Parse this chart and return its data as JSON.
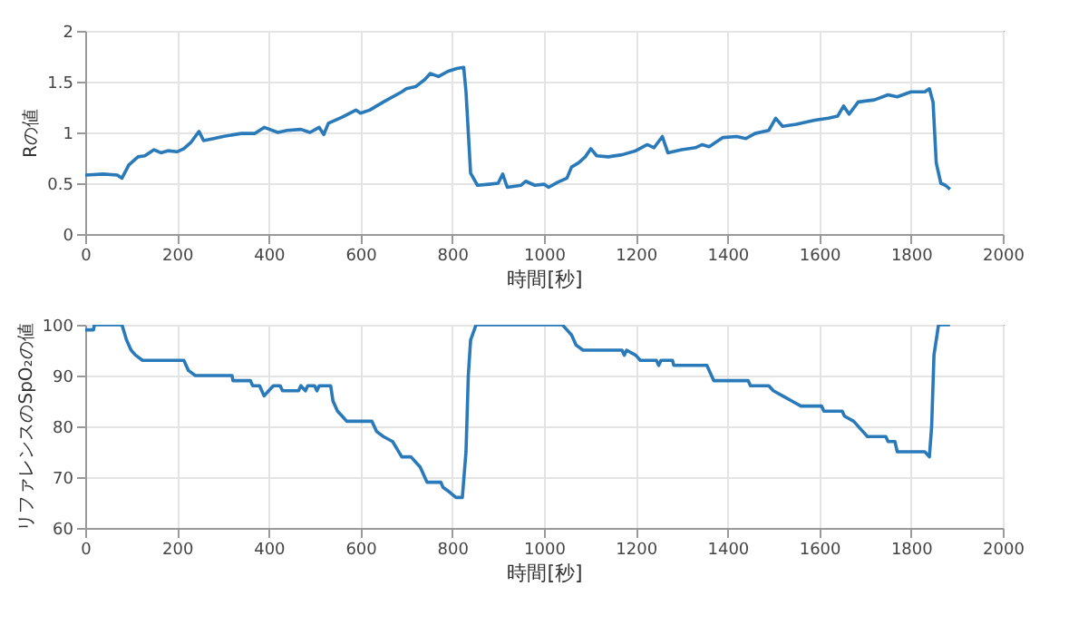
{
  "chart_data": [
    {
      "type": "line",
      "xlabel": "時間[秒]",
      "ylabel": "Rの値",
      "xlim": [
        0,
        2000
      ],
      "xticks": [
        0,
        200,
        400,
        600,
        800,
        1000,
        1200,
        1400,
        1600,
        1800,
        2000
      ],
      "ylim": [
        0,
        2
      ],
      "yticks": [
        0,
        0.5,
        1,
        1.5,
        2
      ],
      "grid": true,
      "series": [
        {
          "color": "#2a7ab9",
          "x": [
            0,
            40,
            70,
            80,
            95,
            115,
            130,
            150,
            165,
            180,
            200,
            215,
            230,
            248,
            258,
            280,
            300,
            340,
            370,
            390,
            420,
            440,
            470,
            490,
            510,
            520,
            530,
            560,
            590,
            600,
            620,
            650,
            690,
            700,
            720,
            740,
            752,
            770,
            790,
            810,
            825,
            830,
            840,
            855,
            880,
            900,
            910,
            920,
            950,
            960,
            980,
            1000,
            1010,
            1030,
            1050,
            1060,
            1075,
            1090,
            1102,
            1115,
            1140,
            1170,
            1200,
            1225,
            1240,
            1258,
            1270,
            1300,
            1330,
            1345,
            1360,
            1390,
            1420,
            1440,
            1460,
            1490,
            1505,
            1520,
            1550,
            1590,
            1620,
            1640,
            1653,
            1665,
            1685,
            1720,
            1750,
            1770,
            1800,
            1830,
            1840,
            1848,
            1855,
            1865,
            1875,
            1885
          ],
          "values": [
            0.58,
            0.59,
            0.58,
            0.55,
            0.68,
            0.76,
            0.77,
            0.83,
            0.8,
            0.82,
            0.81,
            0.84,
            0.9,
            1.01,
            0.92,
            0.94,
            0.96,
            0.99,
            0.99,
            1.05,
            1.0,
            1.02,
            1.03,
            1.0,
            1.05,
            0.98,
            1.09,
            1.15,
            1.22,
            1.19,
            1.22,
            1.3,
            1.4,
            1.43,
            1.45,
            1.52,
            1.58,
            1.55,
            1.6,
            1.63,
            1.64,
            1.4,
            0.6,
            0.48,
            0.49,
            0.5,
            0.59,
            0.46,
            0.48,
            0.52,
            0.48,
            0.49,
            0.46,
            0.51,
            0.55,
            0.66,
            0.7,
            0.76,
            0.84,
            0.77,
            0.76,
            0.78,
            0.82,
            0.88,
            0.85,
            0.96,
            0.8,
            0.83,
            0.85,
            0.88,
            0.86,
            0.95,
            0.96,
            0.94,
            0.99,
            1.02,
            1.14,
            1.06,
            1.08,
            1.12,
            1.14,
            1.16,
            1.26,
            1.18,
            1.3,
            1.32,
            1.37,
            1.35,
            1.4,
            1.4,
            1.43,
            1.3,
            0.7,
            0.5,
            0.48,
            0.44
          ]
        }
      ]
    },
    {
      "type": "line",
      "xlabel": "時間[秒]",
      "ylabel": "リファレンスのSpO₂の値",
      "xlim": [
        0,
        2000
      ],
      "xticks": [
        0,
        200,
        400,
        600,
        800,
        1000,
        1200,
        1400,
        1600,
        1800,
        2000
      ],
      "ylim": [
        60,
        100
      ],
      "yticks": [
        60,
        70,
        80,
        90,
        100
      ],
      "grid": true,
      "series": [
        {
          "color": "#2a7ab9",
          "x": [
            0,
            18,
            20,
            80,
            90,
            100,
            110,
            125,
            215,
            225,
            240,
            320,
            322,
            360,
            365,
            380,
            390,
            400,
            410,
            425,
            430,
            465,
            470,
            480,
            485,
            500,
            505,
            510,
            535,
            540,
            550,
            560,
            570,
            625,
            635,
            650,
            670,
            690,
            710,
            720,
            730,
            745,
            775,
            780,
            795,
            808,
            822,
            830,
            835,
            840,
            852,
            1040,
            1050,
            1060,
            1070,
            1085,
            1170,
            1175,
            1180,
            1200,
            1210,
            1245,
            1250,
            1255,
            1280,
            1283,
            1355,
            1370,
            1445,
            1450,
            1490,
            1500,
            1520,
            1540,
            1560,
            1605,
            1610,
            1650,
            1655,
            1675,
            1695,
            1705,
            1745,
            1750,
            1765,
            1770,
            1830,
            1840,
            1845,
            1850,
            1860,
            1885
          ],
          "values": [
            99,
            99,
            100,
            100,
            97,
            95,
            94,
            93,
            93,
            91,
            90,
            90,
            89,
            89,
            88,
            88,
            86,
            87,
            88,
            88,
            87,
            87,
            88,
            87,
            88,
            88,
            87,
            88,
            88,
            85,
            83,
            82,
            81,
            81,
            79,
            78,
            77,
            74,
            74,
            73,
            72,
            69,
            69,
            68,
            67,
            66,
            66,
            75,
            90,
            97,
            100,
            100,
            99,
            98,
            96,
            95,
            95,
            94,
            95,
            94,
            93,
            93,
            92,
            93,
            93,
            92,
            92,
            89,
            89,
            88,
            88,
            87,
            86,
            85,
            84,
            84,
            83,
            83,
            82,
            81,
            79,
            78,
            78,
            77,
            77,
            75,
            75,
            74,
            80,
            94,
            100,
            100
          ]
        }
      ]
    }
  ]
}
